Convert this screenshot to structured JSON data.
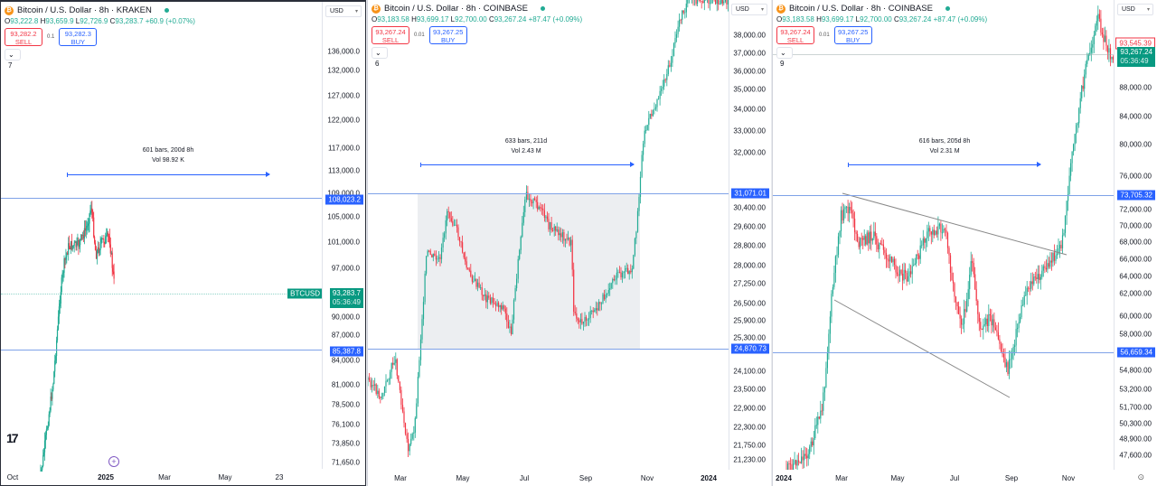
{
  "panes": [
    {
      "title": "Bitcoin / U.S. Dollar · 8h · KRAKEN",
      "ohlc": {
        "o_label": "O",
        "o": "93,222.8",
        "h_label": "H",
        "h": "93,659.9",
        "l_label": "L",
        "l": "92,726.9",
        "c_label": "C",
        "c": "93,283.7",
        "change": "+60.9 (+0.07%)"
      },
      "sell": {
        "price": "93,282.2",
        "label": "SELL"
      },
      "spread": "0.1",
      "buy": {
        "price": "93,282.3",
        "label": "BUY"
      },
      "indicators_count": "7",
      "currency": "USD",
      "axis_ticks": [
        "136,000.0",
        "132,000.0",
        "127,000.0",
        "122,000.0",
        "117,000.0",
        "113,000.0",
        "109,000.0",
        "105,000.0",
        "101,000.0",
        "97,000.0",
        "90,000.0",
        "87,000.0",
        "84,000.0",
        "81,000.0",
        "78,500.0",
        "76,100.0",
        "73,850.0",
        "71,650.0"
      ],
      "hline_labels": [
        "108,023.2",
        "85,387.8"
      ],
      "symbol_tag": "BTCUSD",
      "last_price": "93,283.7",
      "countdown": "05:36:49",
      "time_labels": [
        "Oct",
        "2025",
        "Mar",
        "May",
        "23"
      ],
      "measure": {
        "line1": "601 bars, 200d 8h",
        "line2": "Vol 98.92 K"
      },
      "logo": "TV"
    },
    {
      "title": "Bitcoin / U.S. Dollar · 8h · COINBASE",
      "ohlc": {
        "o_label": "O",
        "o": "93,183.58",
        "h_label": "H",
        "h": "93,699.17",
        "l_label": "L",
        "l": "92,700.00",
        "c_label": "C",
        "c": "93,267.24",
        "change": "+87.47 (+0.09%)"
      },
      "sell": {
        "price": "93,267.24",
        "label": "SELL"
      },
      "spread": "0.01",
      "buy": {
        "price": "93,267.25",
        "label": "BUY"
      },
      "indicators_count": "6",
      "currency": "USD",
      "axis_ticks": [
        "39,000.00",
        "38,000.00",
        "37,000.00",
        "36,000.00",
        "35,000.00",
        "34,000.00",
        "33,000.00",
        "32,000.00",
        "30,400.00",
        "29,600.00",
        "28,800.00",
        "28,000.00",
        "27,250.00",
        "26,500.00",
        "25,900.00",
        "25,300.00",
        "24,100.00",
        "23,500.00",
        "22,900.00",
        "22,300.00",
        "21,750.00",
        "21,230.00"
      ],
      "hline_labels": [
        "31,071.01",
        "24,870.73"
      ],
      "time_labels": [
        "Mar",
        "May",
        "Jul",
        "Sep",
        "Nov",
        "2024"
      ],
      "measure": {
        "line1": "633 bars, 211d",
        "line2": "Vol 2.43 M"
      }
    },
    {
      "title": "Bitcoin / U.S. Dollar · 8h · COINBASE",
      "ohlc": {
        "o_label": "O",
        "o": "93,183.58",
        "h_label": "H",
        "h": "93,699.17",
        "l_label": "L",
        "l": "92,700.00",
        "c_label": "C",
        "c": "93,267.24",
        "change": "+87.47 (+0.09%)"
      },
      "sell": {
        "price": "93,267.24",
        "label": "SELL"
      },
      "spread": "0.01",
      "buy": {
        "price": "93,267.25",
        "label": "BUY"
      },
      "indicators_count": "9",
      "currency": "USD",
      "axis_ticks": [
        "96,000.00",
        "88,000.00",
        "84,000.00",
        "80,000.00",
        "76,000.00",
        "72,000.00",
        "70,000.00",
        "68,000.00",
        "66,000.00",
        "64,000.00",
        "62,000.00",
        "60,000.00",
        "58,000.00",
        "54,800.00",
        "53,200.00",
        "51,700.00",
        "50,300.00",
        "48,900.00",
        "47,600.00"
      ],
      "hline_labels": [
        "73,705.32",
        "56,659.34"
      ],
      "prev_close": "93,545.39",
      "last_price": "93,267.24",
      "countdown": "05:36:49",
      "time_labels": [
        "2024",
        "Mar",
        "May",
        "Jul",
        "Sep",
        "Nov"
      ],
      "measure": {
        "line1": "616 bars, 205d 8h",
        "line2": "Vol 2.31 M"
      }
    }
  ],
  "colors": {
    "up": "#22ab94",
    "down": "#f23645",
    "accent": "#2962ff",
    "hline": "#7fa2e8"
  }
}
